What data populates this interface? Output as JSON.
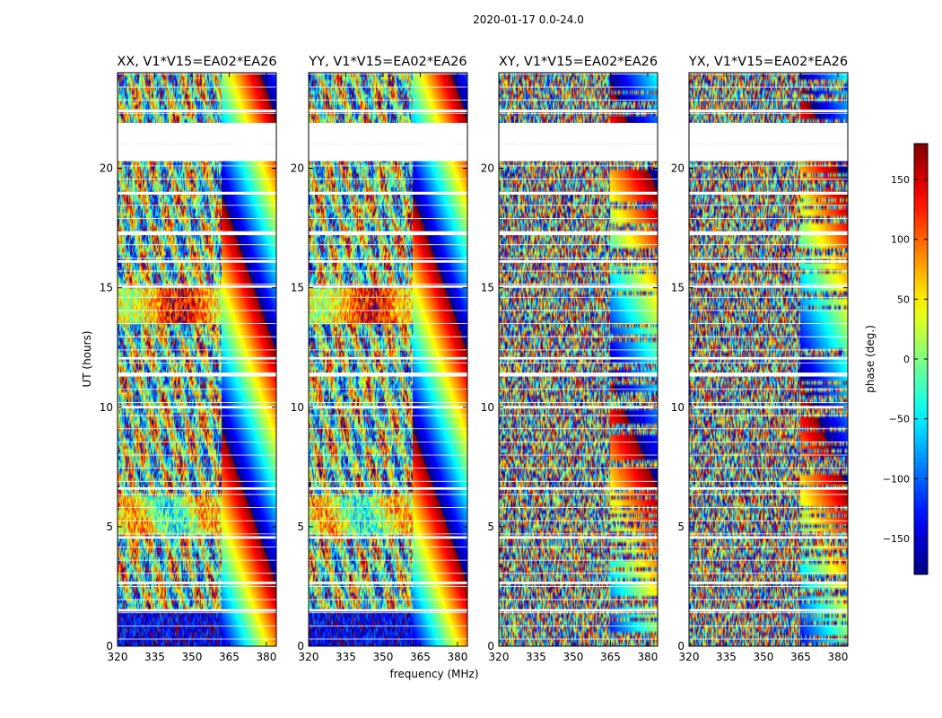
{
  "figure_title": "2020-01-17 0.0-24.0",
  "chart_data": {
    "type": "heatmap",
    "suptitle": "2020-01-17 0.0-24.0",
    "xlabel": "frequency (MHz)",
    "ylabel": "UT (hours)",
    "xlim": [
      320,
      384
    ],
    "ylim": [
      0,
      24
    ],
    "xticks": [
      320,
      335,
      350,
      365,
      380
    ],
    "yticks": [
      0,
      5,
      10,
      15,
      20
    ],
    "panels": [
      {
        "title": "XX, V1*V15=EA02*EA26",
        "pol": "XX",
        "pattern": "parallel"
      },
      {
        "title": "YY, V1*V15=EA02*EA26",
        "pol": "YY",
        "pattern": "parallel"
      },
      {
        "title": "XY, V1*V15=EA02*EA26",
        "pol": "XY",
        "pattern": "cross"
      },
      {
        "title": "YX, V1*V15=EA02*EA26",
        "pol": "YX",
        "pattern": "cross"
      }
    ],
    "flagged_time_ranges_hours": [
      [
        21.0,
        21.9
      ],
      [
        20.3,
        21.0
      ],
      [
        22.35,
        22.45
      ],
      [
        18.9,
        19.0
      ],
      [
        17.2,
        17.35
      ],
      [
        16.05,
        16.15
      ],
      [
        15.0,
        15.1
      ],
      [
        12.0,
        12.1
      ],
      [
        11.3,
        11.45
      ],
      [
        9.95,
        10.05
      ],
      [
        6.55,
        6.65
      ],
      [
        4.5,
        4.6
      ],
      [
        2.6,
        2.7
      ],
      [
        1.45,
        1.55
      ]
    ],
    "colorbar": {
      "label": "phase (deg.)",
      "range": [
        -180,
        180
      ],
      "ticks": [
        -150,
        -100,
        -50,
        0,
        50,
        100,
        150
      ],
      "tick_labels": [
        "−150",
        "−100",
        "−50",
        "0",
        "50",
        "100",
        "150"
      ],
      "colormap": "jet"
    }
  }
}
